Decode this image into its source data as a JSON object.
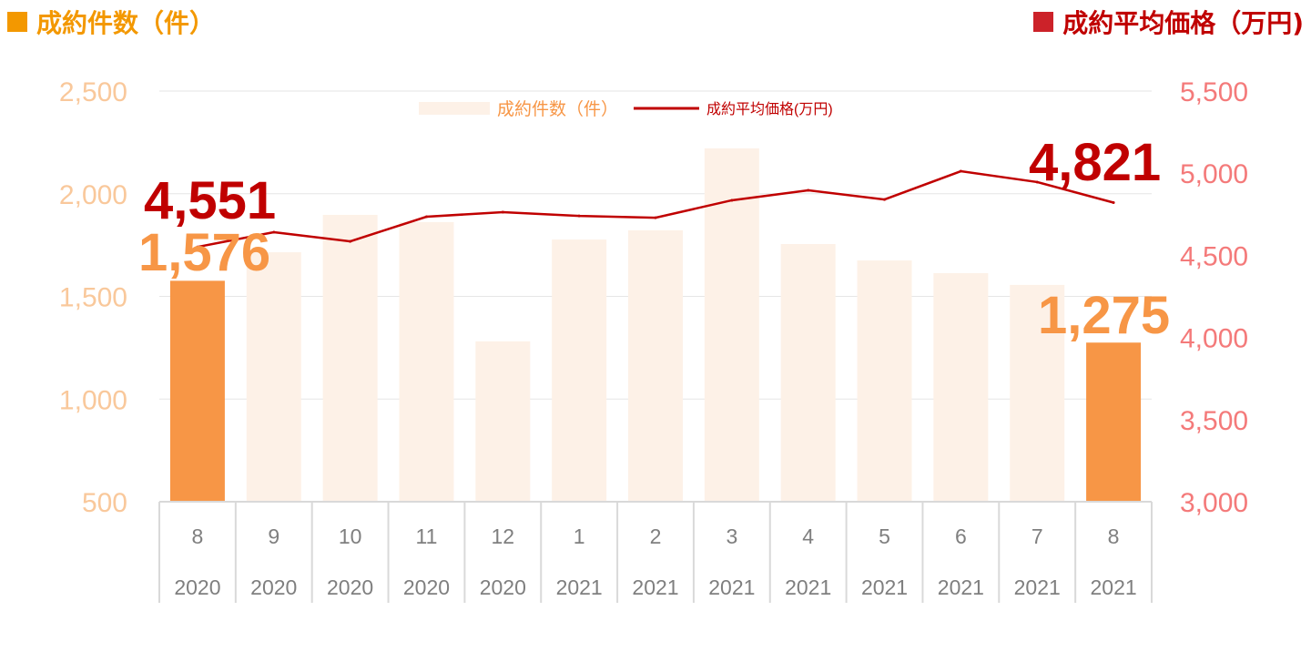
{
  "header": {
    "left_title": "成約件数（件）",
    "right_title": "成約平均価格（万円)"
  },
  "colors": {
    "highlight_bar": "#f79646",
    "bar": "#fdf1e7",
    "line": "#c00000",
    "left_axis": "#f9c89b",
    "right_axis": "#f47a7a",
    "grid": "#e6e6e6",
    "count_label": "#f79646",
    "price_label": "#c00000"
  },
  "chart_data": {
    "type": "bar+line",
    "categories": [
      {
        "month": "8",
        "year": "2020"
      },
      {
        "month": "9",
        "year": "2020"
      },
      {
        "month": "10",
        "year": "2020"
      },
      {
        "month": "11",
        "year": "2020"
      },
      {
        "month": "12",
        "year": "2020"
      },
      {
        "month": "1",
        "year": "2021"
      },
      {
        "month": "2",
        "year": "2021"
      },
      {
        "month": "3",
        "year": "2021"
      },
      {
        "month": "4",
        "year": "2021"
      },
      {
        "month": "5",
        "year": "2021"
      },
      {
        "month": "6",
        "year": "2021"
      },
      {
        "month": "7",
        "year": "2021"
      },
      {
        "month": "8",
        "year": "2021"
      }
    ],
    "series": [
      {
        "name": "成約件数（件）",
        "type": "bar",
        "axis": "left",
        "values": [
          1576,
          1715,
          1897,
          1862,
          1281,
          1777,
          1822,
          2221,
          1755,
          1675,
          1613,
          1556,
          1275
        ],
        "highlight": [
          0,
          12
        ]
      },
      {
        "name": "成約平均価格(万円)",
        "type": "line",
        "axis": "right",
        "values": [
          4551,
          4641,
          4585,
          4735,
          4763,
          4740,
          4729,
          4835,
          4896,
          4840,
          5012,
          4946,
          4821
        ]
      }
    ],
    "left_axis": {
      "ylim": [
        500,
        2500
      ],
      "ticks": [
        "500",
        "1,000",
        "1,500",
        "2,000",
        "2,500"
      ]
    },
    "right_axis": {
      "ylim": [
        3000,
        5500
      ],
      "ticks": [
        "3,000",
        "3,500",
        "4,000",
        "4,500",
        "5,000",
        "5,500"
      ]
    },
    "legend": {
      "placement": "top-center",
      "bar_label": "成約件数（件）",
      "line_label": "成約平均価格(万円)"
    },
    "annotations": {
      "first_price": "4,551",
      "first_count": "1,576",
      "last_price": "4,821",
      "last_count": "1,275"
    },
    "grid": true
  }
}
